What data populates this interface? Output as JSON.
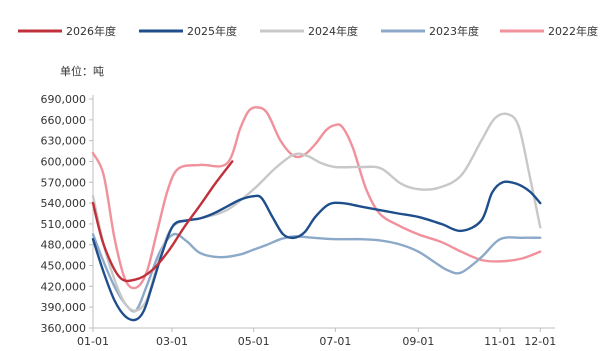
{
  "chart_data": {
    "type": "line",
    "unit_label": "单位：吨",
    "ylim": [
      360000,
      690000
    ],
    "y_ticks": [
      360000,
      390000,
      420000,
      450000,
      480000,
      510000,
      540000,
      570000,
      600000,
      630000,
      660000,
      690000
    ],
    "y_tick_labels": [
      "360,000",
      "390,000",
      "420,000",
      "450,000",
      "480,000",
      "510,000",
      "540,000",
      "570,000",
      "600,000",
      "630,000",
      "660,000",
      "690,000"
    ],
    "x_ticks": [
      "01-01",
      "03-01",
      "05-01",
      "07-01",
      "09-01",
      "11-01",
      "12-01"
    ],
    "x_tick_positions": [
      0,
      59,
      120,
      181,
      243,
      304,
      334
    ],
    "legend_position": "top",
    "grid": false,
    "series": [
      {
        "name": "2026年度",
        "color": "#c0303a",
        "x": [
          0,
          8,
          20,
          32,
          44,
          56,
          68,
          80,
          92,
          104
        ],
        "y": [
          540000,
          480000,
          433000,
          430000,
          443000,
          470000,
          505000,
          537000,
          570000,
          600000
        ]
      },
      {
        "name": "2025年度",
        "color": "#1f4e8c",
        "x": [
          0,
          8,
          16,
          24,
          32,
          38,
          44,
          52,
          60,
          70,
          80,
          90,
          100,
          110,
          120,
          126,
          134,
          142,
          150,
          158,
          166,
          176,
          186,
          200,
          214,
          228,
          243,
          260,
          275,
          290,
          298,
          306,
          316,
          326,
          334
        ],
        "y": [
          488000,
          440000,
          400000,
          377000,
          372000,
          385000,
          420000,
          470000,
          508000,
          515000,
          518000,
          525000,
          535000,
          545000,
          550000,
          547000,
          520000,
          495000,
          490000,
          498000,
          520000,
          538000,
          540000,
          535000,
          530000,
          525000,
          520000,
          510000,
          500000,
          515000,
          555000,
          570000,
          568000,
          557000,
          540000
        ]
      },
      {
        "name": "2024年度",
        "color": "#c8c8c8",
        "x": [
          0,
          8,
          16,
          24,
          32,
          40,
          48,
          56,
          64,
          80,
          100,
          120,
          136,
          150,
          160,
          170,
          181,
          200,
          215,
          230,
          243,
          258,
          275,
          290,
          300,
          310,
          318,
          326,
          334
        ],
        "y": [
          550000,
          480000,
          430000,
          395000,
          385000,
          400000,
          450000,
          495000,
          512000,
          518000,
          530000,
          560000,
          590000,
          610000,
          608000,
          598000,
          592000,
          592000,
          590000,
          568000,
          560000,
          562000,
          580000,
          630000,
          662000,
          668000,
          650000,
          580000,
          505000
        ]
      },
      {
        "name": "2023年度",
        "color": "#8da9c9",
        "x": [
          0,
          8,
          16,
          24,
          32,
          40,
          50,
          60,
          70,
          80,
          95,
          110,
          120,
          130,
          140,
          150,
          165,
          181,
          200,
          215,
          230,
          243,
          255,
          265,
          275,
          290,
          304,
          320,
          334
        ],
        "y": [
          495000,
          455000,
          420000,
          395000,
          385000,
          420000,
          470000,
          495000,
          485000,
          468000,
          462000,
          466000,
          473000,
          480000,
          488000,
          492000,
          490000,
          488000,
          488000,
          486000,
          480000,
          470000,
          455000,
          443000,
          440000,
          462000,
          488000,
          490000,
          490000
        ]
      },
      {
        "name": "2022年度",
        "color": "#f0919c",
        "x": [
          0,
          8,
          16,
          24,
          32,
          40,
          48,
          56,
          64,
          80,
          100,
          110,
          116,
          122,
          130,
          140,
          150,
          158,
          166,
          174,
          180,
          186,
          194,
          204,
          214,
          228,
          243,
          260,
          275,
          290,
          304,
          320,
          334
        ],
        "y": [
          612000,
          580000,
          490000,
          430000,
          418000,
          440000,
          500000,
          560000,
          590000,
          595000,
          597000,
          648000,
          672000,
          678000,
          670000,
          630000,
          608000,
          610000,
          625000,
          645000,
          652000,
          650000,
          620000,
          560000,
          525000,
          508000,
          495000,
          484000,
          470000,
          458000,
          456000,
          460000,
          470000
        ]
      }
    ]
  }
}
